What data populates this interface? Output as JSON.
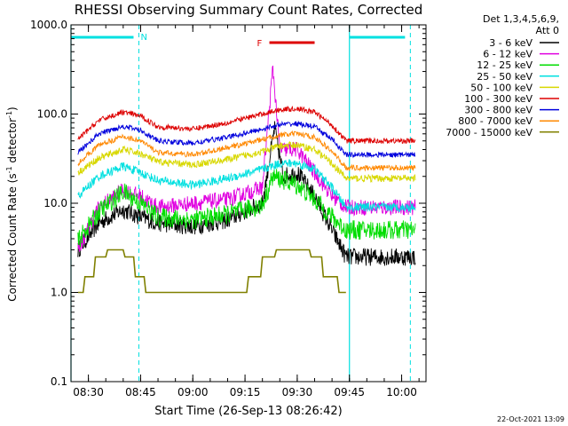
{
  "chart_data": {
    "type": "line",
    "title": "RHESSI Observing Summary Count Rates, Corrected",
    "xlabel": "Start Time (26-Sep-13 08:26:42)",
    "ylabel_main": "Corrected Count Rate (s",
    "ylabel_sup1": "-1",
    "ylabel_mid": " detector",
    "ylabel_sup2": "-1",
    "ylabel_end": ")",
    "y_scale": "log",
    "ylim": [
      0.1,
      1000
    ],
    "xlim": [
      "08:25:00",
      "10:07:00"
    ],
    "xticks": [
      "08:30",
      "08:45",
      "09:00",
      "09:15",
      "09:30",
      "09:45",
      "10:00"
    ],
    "yticks": [
      "0.1",
      "1.0",
      "10.0",
      "100.0",
      "1000.0"
    ],
    "legend_header": [
      "Det 1,3,4,5,6,9,",
      "Att 0"
    ],
    "timestamp": "22-Oct-2021 13:09",
    "night_markers": [
      {
        "start": "08:25:00",
        "end": "08:44:30",
        "label": "N"
      },
      {
        "start": "09:45:00",
        "end": "10:02:30",
        "label": ""
      }
    ],
    "flare_marker": {
      "start": "09:22:00",
      "end": "09:35:00",
      "label": "F"
    },
    "series": [
      {
        "name": "3 - 6 keV",
        "color": "#000000",
        "values": [
          [
            "08:27:00",
            3.0
          ],
          [
            "08:33:00",
            6.0
          ],
          [
            "08:40:00",
            8.5
          ],
          [
            "08:45:00",
            7.0
          ],
          [
            "08:50:00",
            6.0
          ],
          [
            "09:00:00",
            5.5
          ],
          [
            "09:10:00",
            6.5
          ],
          [
            "09:20:00",
            10.0
          ],
          [
            "09:23:30",
            70.0
          ],
          [
            "09:26:00",
            20.0
          ],
          [
            "09:30:00",
            22.0
          ],
          [
            "09:35:00",
            12.0
          ],
          [
            "09:40:00",
            5.0
          ],
          [
            "09:44:00",
            2.5
          ],
          [
            "10:04:00",
            2.5
          ]
        ]
      },
      {
        "name": "6 - 12 keV",
        "color": "#e000e0",
        "values": [
          [
            "08:27:00",
            3.0
          ],
          [
            "08:33:00",
            9.0
          ],
          [
            "08:40:00",
            14.0
          ],
          [
            "08:45:00",
            12.0
          ],
          [
            "08:50:00",
            9.0
          ],
          [
            "09:00:00",
            10.0
          ],
          [
            "09:10:00",
            11.0
          ],
          [
            "09:20:00",
            15.0
          ],
          [
            "09:23:00",
            330.0
          ],
          [
            "09:25:00",
            40.0
          ],
          [
            "09:30:00",
            40.0
          ],
          [
            "09:35:00",
            22.0
          ],
          [
            "09:40:00",
            12.0
          ],
          [
            "09:44:00",
            9.0
          ],
          [
            "10:04:00",
            9.0
          ]
        ]
      },
      {
        "name": "12 - 25 keV",
        "color": "#00dd00",
        "values": [
          [
            "08:27:00",
            3.8
          ],
          [
            "08:33:00",
            8.0
          ],
          [
            "08:40:00",
            13.5
          ],
          [
            "08:45:00",
            10.0
          ],
          [
            "08:50:00",
            7.0
          ],
          [
            "09:00:00",
            6.5
          ],
          [
            "09:10:00",
            7.5
          ],
          [
            "09:20:00",
            9.5
          ],
          [
            "09:23:00",
            20.0
          ],
          [
            "09:30:00",
            16.0
          ],
          [
            "09:35:00",
            11.0
          ],
          [
            "09:40:00",
            7.0
          ],
          [
            "09:44:00",
            5.0
          ],
          [
            "10:04:00",
            5.0
          ]
        ]
      },
      {
        "name": "25 - 50 keV",
        "color": "#00e0e0",
        "values": [
          [
            "08:27:00",
            12.0
          ],
          [
            "08:33:00",
            20.0
          ],
          [
            "08:40:00",
            26.0
          ],
          [
            "08:45:00",
            22.0
          ],
          [
            "08:50:00",
            18.0
          ],
          [
            "09:00:00",
            16.0
          ],
          [
            "09:10:00",
            19.0
          ],
          [
            "09:20:00",
            24.0
          ],
          [
            "09:25:00",
            28.0
          ],
          [
            "09:30:00",
            28.0
          ],
          [
            "09:35:00",
            24.0
          ],
          [
            "09:40:00",
            15.0
          ],
          [
            "09:44:00",
            9.0
          ],
          [
            "10:04:00",
            9.0
          ]
        ]
      },
      {
        "name": "50 - 100 keV",
        "color": "#d8d800",
        "values": [
          [
            "08:27:00",
            22.0
          ],
          [
            "08:33:00",
            32.0
          ],
          [
            "08:40:00",
            40.0
          ],
          [
            "08:45:00",
            36.0
          ],
          [
            "08:50:00",
            29.0
          ],
          [
            "09:00:00",
            27.0
          ],
          [
            "09:10:00",
            31.0
          ],
          [
            "09:20:00",
            38.0
          ],
          [
            "09:25:00",
            44.0
          ],
          [
            "09:30:00",
            45.0
          ],
          [
            "09:35:00",
            40.0
          ],
          [
            "09:40:00",
            28.0
          ],
          [
            "09:44:00",
            19.0
          ],
          [
            "10:04:00",
            19.0
          ]
        ]
      },
      {
        "name": "100 - 300 keV",
        "color": "#dd0000",
        "values": [
          [
            "08:27:00",
            52.0
          ],
          [
            "08:33:00",
            85.0
          ],
          [
            "08:40:00",
            105.0
          ],
          [
            "08:45:00",
            95.0
          ],
          [
            "08:50:00",
            72.0
          ],
          [
            "09:00:00",
            68.0
          ],
          [
            "09:10:00",
            80.0
          ],
          [
            "09:20:00",
            100.0
          ],
          [
            "09:25:00",
            112.0
          ],
          [
            "09:30:00",
            115.0
          ],
          [
            "09:35:00",
            105.0
          ],
          [
            "09:40:00",
            75.0
          ],
          [
            "09:44:00",
            50.0
          ],
          [
            "10:04:00",
            50.0
          ]
        ]
      },
      {
        "name": "300 - 800 keV",
        "color": "#0000dd",
        "values": [
          [
            "08:27:00",
            37.0
          ],
          [
            "08:33:00",
            60.0
          ],
          [
            "08:40:00",
            73.0
          ],
          [
            "08:45:00",
            66.0
          ],
          [
            "08:50:00",
            50.0
          ],
          [
            "09:00:00",
            47.0
          ],
          [
            "09:10:00",
            55.0
          ],
          [
            "09:20:00",
            68.0
          ],
          [
            "09:25:00",
            76.0
          ],
          [
            "09:30:00",
            78.0
          ],
          [
            "09:35:00",
            72.0
          ],
          [
            "09:40:00",
            52.0
          ],
          [
            "09:44:00",
            35.0
          ],
          [
            "10:04:00",
            35.0
          ]
        ]
      },
      {
        "name": "800 - 7000 keV",
        "color": "#ff8800",
        "values": [
          [
            "08:27:00",
            28.0
          ],
          [
            "08:33:00",
            45.0
          ],
          [
            "08:40:00",
            56.0
          ],
          [
            "08:45:00",
            50.0
          ],
          [
            "08:50:00",
            37.0
          ],
          [
            "09:00:00",
            35.0
          ],
          [
            "09:10:00",
            42.0
          ],
          [
            "09:20:00",
            52.0
          ],
          [
            "09:25:00",
            58.0
          ],
          [
            "09:30:00",
            60.0
          ],
          [
            "09:35:00",
            55.0
          ],
          [
            "09:40:00",
            38.0
          ],
          [
            "09:44:00",
            25.0
          ],
          [
            "10:04:00",
            25.0
          ]
        ]
      },
      {
        "name": "7000 - 15000 keV",
        "color": "#808000",
        "values": [
          [
            "08:27:00",
            1.0
          ],
          [
            "08:30:00",
            1.5
          ],
          [
            "08:33:00",
            2.5
          ],
          [
            "08:38:00",
            3.0
          ],
          [
            "08:42:00",
            2.5
          ],
          [
            "08:45:00",
            1.5
          ],
          [
            "08:48:00",
            1.0
          ],
          [
            "09:07:00",
            1.0
          ],
          [
            "09:15:00",
            1.0
          ],
          [
            "09:17:00",
            1.8
          ],
          [
            "09:20:00",
            2.0
          ],
          [
            "09:25:00",
            3.0
          ],
          [
            "09:30:00",
            3.5
          ],
          [
            "09:35:00",
            2.5
          ],
          [
            "09:40:00",
            1.5
          ],
          [
            "09:44:00",
            1.0
          ]
        ]
      }
    ]
  }
}
